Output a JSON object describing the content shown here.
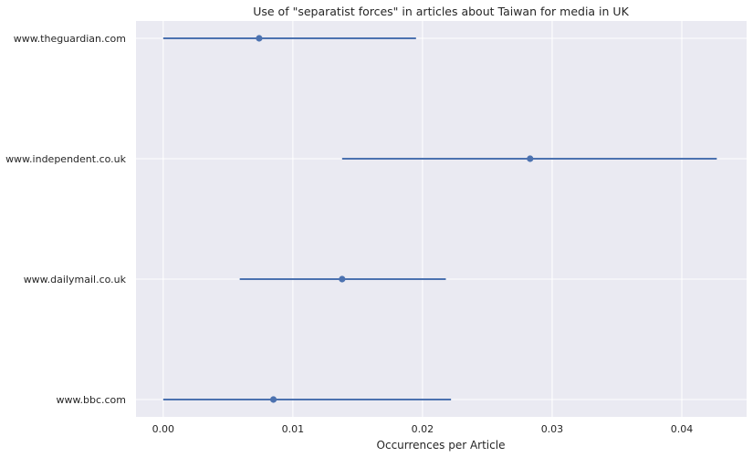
{
  "chart_data": {
    "type": "scatter",
    "title": "Use of \"separatist forces\" in articles about Taiwan for media in UK",
    "xlabel": "Occurrences per Article",
    "ylabel": "",
    "categories": [
      "www.theguardian.com",
      "www.independent.co.uk",
      "www.dailymail.co.uk",
      "www.bbc.com"
    ],
    "series": [
      {
        "values": [
          0.0074,
          0.0283,
          0.0138,
          0.0085
        ],
        "ci_low": [
          0.0,
          0.0138,
          0.0059,
          0.0
        ],
        "ci_high": [
          0.0195,
          0.0427,
          0.0218,
          0.0222
        ]
      }
    ],
    "xlim": [
      -0.0021,
      0.045
    ],
    "xticks": [
      0.0,
      0.01,
      0.02,
      0.03,
      0.04
    ],
    "xtick_labels": [
      "0.00",
      "0.01",
      "0.02",
      "0.03",
      "0.04"
    ],
    "grid": true,
    "colors": {
      "background": "#eaeaf2",
      "grid": "#ffffff",
      "series": "#4c72b0"
    }
  }
}
